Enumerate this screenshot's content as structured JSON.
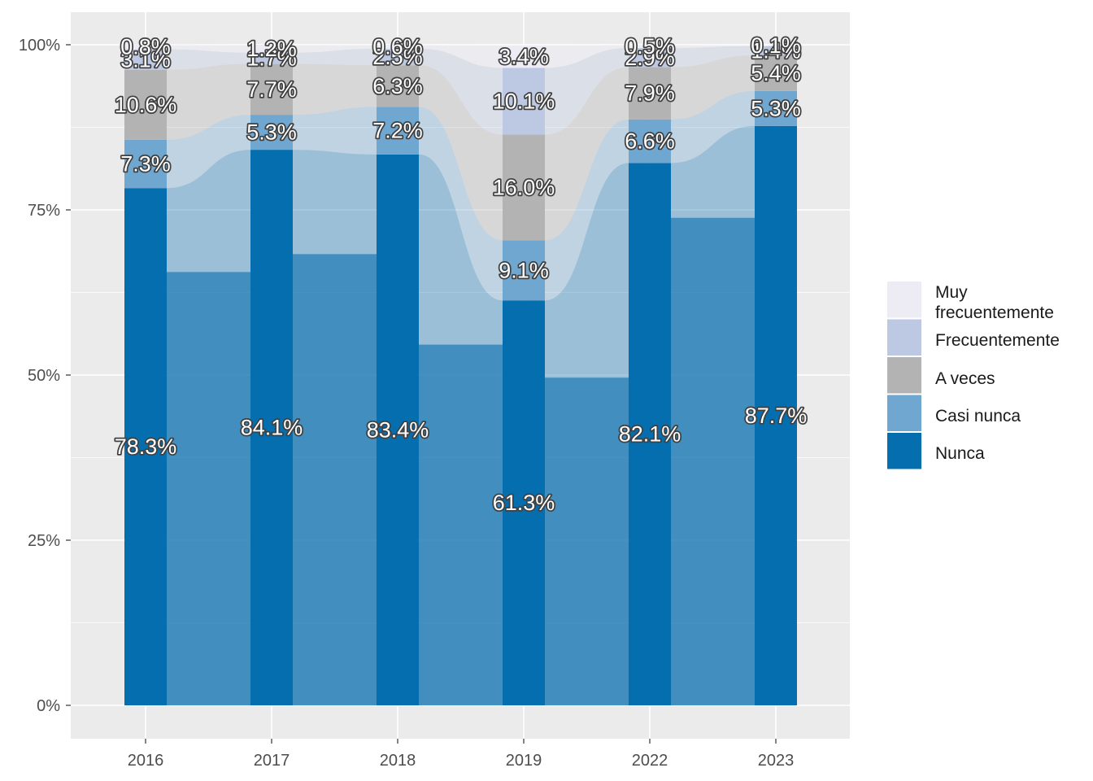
{
  "chart_data": {
    "type": "bar",
    "subtype": "stacked-percent-alluvial",
    "categories": [
      "2016",
      "2017",
      "2018",
      "2019",
      "2022",
      "2023"
    ],
    "y_ticks": [
      "0%",
      "25%",
      "50%",
      "75%",
      "100%"
    ],
    "ylim": [
      0,
      100
    ],
    "grid": true,
    "legend_position": "right",
    "series": [
      {
        "name": "Nunca",
        "color": "#056EAF",
        "values": [
          78.3,
          84.1,
          83.4,
          61.3,
          82.1,
          87.7
        ]
      },
      {
        "name": "Casi nunca",
        "color": "#70A7D0",
        "values": [
          7.3,
          5.3,
          7.2,
          9.1,
          6.6,
          5.3
        ]
      },
      {
        "name": "A veces",
        "color": "#B3B3B3",
        "values": [
          10.6,
          7.7,
          6.3,
          16.0,
          7.9,
          5.4
        ]
      },
      {
        "name": "Frecuentemente",
        "color": "#BDC9E3",
        "values": [
          3.1,
          1.7,
          2.5,
          10.1,
          2.9,
          1.4
        ]
      },
      {
        "name": "Muy frecuentemente",
        "color": "#EDECF5",
        "values": [
          0.8,
          1.2,
          0.6,
          3.4,
          0.5,
          0.1
        ]
      }
    ],
    "legend_labels": [
      "Muy",
      "frecuentemente",
      "Frecuentemente",
      "A veces",
      "Casi nunca",
      "Nunca"
    ],
    "flows": [
      {
        "from": "Nunca",
        "to": "Nunca",
        "values": [
          65.6,
          68.3,
          54.6,
          49.6,
          73.8
        ]
      }
    ]
  }
}
